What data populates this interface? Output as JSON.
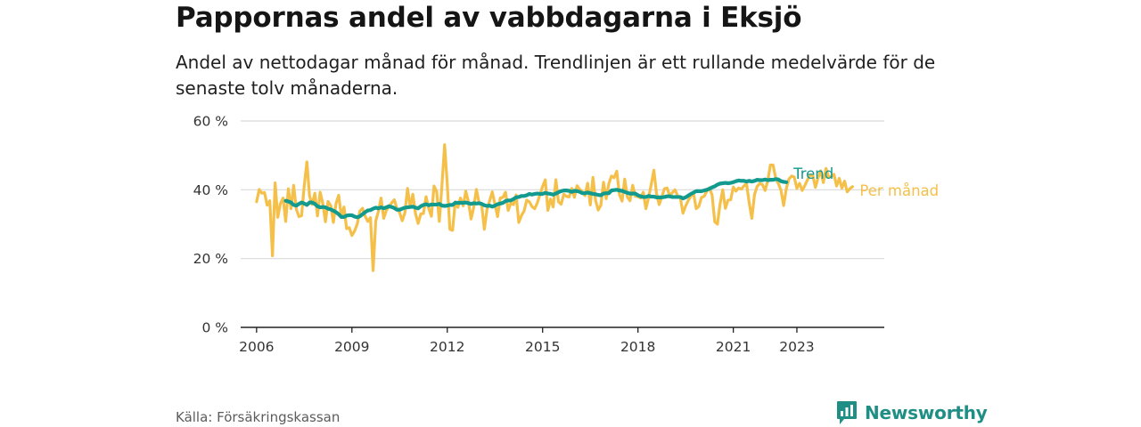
{
  "header": {
    "title": "Pappornas andel av vabbdagarna i Eksjö",
    "subtitle": "Andel av nettodagar månad för månad. Trendlinjen är ett rullande medelvärde för de senaste tolv månaderna."
  },
  "footer": {
    "source": "Källa: Försäkringskassan",
    "brand": "Newsworthy",
    "brand_icon": "bar-chart-speech-bubble-icon"
  },
  "colors": {
    "monthly": "#F5C04A",
    "trend": "#139A8E",
    "grid": "#d9d9d9",
    "axis": "#222222",
    "brand": "#1f8f86"
  },
  "chart_data": {
    "type": "line",
    "title": "Pappornas andel av vabbdagarna i Eksjö",
    "xlabel": "",
    "ylabel": "",
    "x_range": [
      "2005-07",
      "2025-10"
    ],
    "ylim": [
      0,
      60
    ],
    "x_ticks": [
      "2006",
      "2009",
      "2012",
      "2015",
      "2018",
      "2021",
      "2023"
    ],
    "y_ticks": [
      "0 %",
      "20 %",
      "40 %",
      "60 %"
    ],
    "y_tick_values": [
      0,
      20,
      40,
      60
    ],
    "grid": true,
    "legend": "direct labels at line ends (right)",
    "series": [
      {
        "name": "Trend",
        "start": "2006-12",
        "values": [
          36.8,
          36.6,
          36.3,
          35.6,
          35.4,
          35.9,
          36.3,
          36.0,
          35.6,
          36.3,
          36.3,
          35.9,
          35.2,
          34.9,
          35.0,
          34.9,
          34.5,
          34.3,
          33.9,
          33.5,
          32.9,
          32.1,
          32.1,
          32.5,
          32.6,
          32.6,
          32.2,
          32.0,
          32.3,
          32.9,
          33.5,
          34.0,
          34.1,
          34.5,
          34.8,
          34.6,
          34.9,
          34.6,
          34.9,
          35.2,
          35.0,
          34.7,
          34.2,
          34.2,
          34.5,
          34.8,
          34.9,
          35.0,
          35.1,
          34.8,
          34.6,
          35.2,
          35.6,
          35.8,
          35.5,
          35.7,
          35.7,
          35.7,
          35.9,
          35.4,
          35.3,
          35.4,
          35.6,
          35.6,
          36.2,
          36.2,
          36.2,
          36.2,
          36.3,
          36.1,
          35.9,
          36.1,
          36.0,
          36.1,
          35.9,
          35.5,
          35.3,
          35.4,
          35.1,
          35.4,
          35.8,
          36.0,
          36.2,
          36.7,
          36.9,
          36.9,
          37.3,
          37.8,
          37.9,
          38.2,
          38.2,
          38.4,
          38.8,
          38.6,
          38.8,
          38.9,
          38.8,
          38.8,
          39.1,
          38.9,
          38.8,
          38.6,
          38.9,
          39.3,
          39.6,
          39.8,
          39.8,
          39.7,
          39.4,
          39.7,
          39.6,
          39.4,
          39.0,
          39.0,
          39.2,
          39.0,
          38.8,
          38.7,
          38.5,
          38.4,
          38.9,
          39.0,
          39.0,
          39.8,
          39.9,
          40.0,
          39.8,
          39.7,
          39.4,
          39.1,
          38.9,
          38.9,
          38.9,
          38.4,
          38.1,
          37.9,
          37.9,
          38.2,
          38.0,
          38.0,
          37.8,
          37.8,
          37.8,
          37.9,
          38.1,
          38.1,
          37.9,
          37.9,
          37.9,
          37.9,
          37.5,
          37.8,
          38.3,
          38.8,
          39.2,
          39.6,
          39.6,
          39.6,
          39.8,
          40.0,
          40.3,
          40.7,
          41.0,
          41.5,
          41.8,
          41.9,
          42.0,
          41.9,
          42.0,
          42.2,
          42.5,
          42.7,
          42.6,
          42.6,
          42.4,
          42.6,
          42.4,
          42.6,
          42.9,
          42.8,
          42.8,
          43.0,
          42.8,
          42.9,
          42.9,
          43.1,
          43.0,
          42.5,
          42.3,
          42.2
        ]
      },
      {
        "name": "Per månad",
        "start": "2006-01",
        "values": [
          36.5,
          40.1,
          39.0,
          39.2,
          35.5,
          36.8,
          20.8,
          42.0,
          32.0,
          36.0,
          37.6,
          30.8,
          40.3,
          34.5,
          41.3,
          34.4,
          32.2,
          32.5,
          41.2,
          48.1,
          38.2,
          35.7,
          39.0,
          32.4,
          39.3,
          36.0,
          30.7,
          36.6,
          35.4,
          30.5,
          36.0,
          38.4,
          32.2,
          35.0,
          28.7,
          29.0,
          26.7,
          28.0,
          30.0,
          33.8,
          34.6,
          32.3,
          30.8,
          31.9,
          16.5,
          31.0,
          33.7,
          37.6,
          31.7,
          34.0,
          35.1,
          36.2,
          37.1,
          34.5,
          33.4,
          31.0,
          33.3,
          40.4,
          35.0,
          38.7,
          33.1,
          30.2,
          33.0,
          33.1,
          38.0,
          34.6,
          32.3,
          41.1,
          39.5,
          30.8,
          41.4,
          53.1,
          41.6,
          28.5,
          28.2,
          36.5,
          34.9,
          37.6,
          35.3,
          39.6,
          36.5,
          31.5,
          35.0,
          40.1,
          36.3,
          35.5,
          28.5,
          34.3,
          36.8,
          39.4,
          35.8,
          32.2,
          37.6,
          37.8,
          39.3,
          34.0,
          36.1,
          35.7,
          38.5,
          30.5,
          32.5,
          33.8,
          37.0,
          36.5,
          35.1,
          34.5,
          36.2,
          38.6,
          41.0,
          42.9,
          34.0,
          37.3,
          35.0,
          42.9,
          36.5,
          35.8,
          38.7,
          38.1,
          37.9,
          40.4,
          37.8,
          41.2,
          40.1,
          39.5,
          38.3,
          41.9,
          35.6,
          43.6,
          36.9,
          34.1,
          35.5,
          42.2,
          37.4,
          41.8,
          44.0,
          43.5,
          45.4,
          38.6,
          36.7,
          43.1,
          37.9,
          36.8,
          41.3,
          38.1,
          38.0,
          37.6,
          39.3,
          34.5,
          37.7,
          41.5,
          45.7,
          39.0,
          35.7,
          37.9,
          40.3,
          40.5,
          38.2,
          39.2,
          40.0,
          38.2,
          37.7,
          33.2,
          35.3,
          36.9,
          38.2,
          38.9,
          34.5,
          35.2,
          37.8,
          38.1,
          39.6,
          40.6,
          38.4,
          30.7,
          30.0,
          35.9,
          40.0,
          34.6,
          37.0,
          37.1,
          40.8,
          39.6,
          40.5,
          40.2,
          41.1,
          41.8,
          36.2,
          31.7,
          38.6,
          41.0,
          41.8,
          41.5,
          39.8,
          42.6,
          47.2,
          47.2,
          43.4,
          41.8,
          39.9,
          35.4,
          40.3,
          43.1,
          44.0,
          43.7,
          40.4,
          41.9,
          39.8,
          41.2,
          42.9,
          44.3,
          44.2,
          40.7,
          43.5,
          45.5,
          42.1,
          46.2,
          43.7,
          43.9,
          44.5,
          41.1,
          43.3,
          40.5,
          42.5,
          39.4,
          40.3,
          40.9
        ]
      }
    ]
  }
}
